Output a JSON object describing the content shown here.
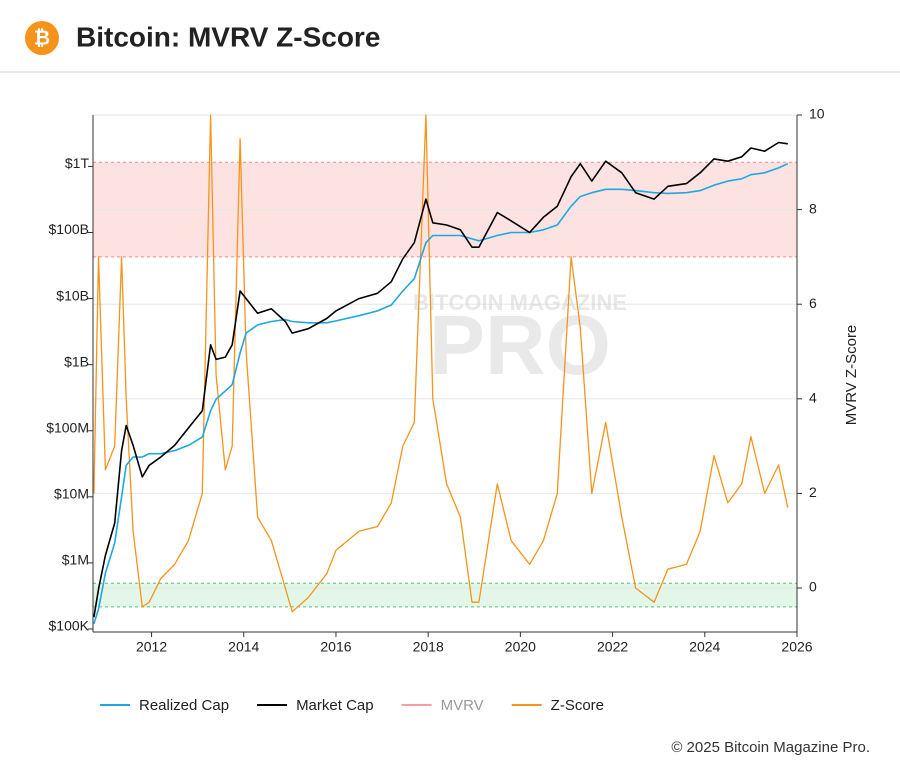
{
  "header": {
    "icon": "₿"
  },
  "chart_data": {
    "type": "line",
    "title": "Bitcoin: MVRV Z-Score",
    "y2_label": "MVRV Z-Score",
    "watermark": {
      "top": "BITCOIN MAGAZINE",
      "main": "PRO"
    },
    "x": [
      2010.75,
      2010.85,
      2011.0,
      2011.2,
      2011.35,
      2011.45,
      2011.6,
      2011.8,
      2011.95,
      2012.2,
      2012.5,
      2012.8,
      2013.1,
      2013.28,
      2013.4,
      2013.6,
      2013.75,
      2013.92,
      2014.05,
      2014.3,
      2014.6,
      2014.9,
      2015.05,
      2015.4,
      2015.8,
      2016.0,
      2016.5,
      2016.9,
      2017.2,
      2017.45,
      2017.7,
      2017.95,
      2018.1,
      2018.4,
      2018.7,
      2018.95,
      2019.1,
      2019.5,
      2019.8,
      2020.2,
      2020.5,
      2020.8,
      2021.1,
      2021.3,
      2021.55,
      2021.85,
      2022.2,
      2022.5,
      2022.9,
      2023.2,
      2023.6,
      2023.9,
      2024.2,
      2024.5,
      2024.8,
      2025.0,
      2025.3,
      2025.6,
      2025.8
    ],
    "series": [
      {
        "name": "Realized Cap",
        "color": "#1fa8e0",
        "values": [
          120000,
          200000,
          700000,
          2000000,
          10000000,
          30000000,
          40000000,
          40000000,
          45000000,
          45000000,
          50000000,
          60000000,
          80000000,
          200000000,
          300000000,
          400000000,
          500000000,
          1500000000,
          3000000000,
          4000000000,
          4500000000,
          4800000000,
          4500000000,
          4300000000,
          4300000000,
          4600000000,
          5500000000,
          6500000000,
          8000000000,
          13000000000,
          20000000000,
          70000000000,
          90000000000,
          90000000000,
          90000000000,
          80000000000,
          75000000000,
          90000000000,
          100000000000,
          100000000000,
          110000000000,
          130000000000,
          250000000000,
          350000000000,
          400000000000,
          450000000000,
          450000000000,
          430000000000,
          400000000000,
          390000000000,
          400000000000,
          430000000000,
          520000000000,
          600000000000,
          650000000000,
          750000000000,
          800000000000,
          950000000000,
          1100000000000
        ]
      },
      {
        "name": "Market Cap",
        "color": "#000000",
        "values": [
          150000,
          400000,
          1300000,
          4000000,
          50000000,
          120000000,
          60000000,
          20000000,
          30000000,
          40000000,
          60000000,
          110000000,
          200000000,
          2000000000,
          1200000000,
          1300000000,
          2000000000,
          13000000000,
          10000000000,
          6000000000,
          7000000000,
          4500000000,
          3000000000,
          3500000000,
          5000000000,
          6500000000,
          10000000000,
          12000000000,
          18000000000,
          40000000000,
          70000000000,
          320000000000,
          140000000000,
          130000000000,
          110000000000,
          60000000000,
          60000000000,
          200000000000,
          150000000000,
          100000000000,
          170000000000,
          250000000000,
          700000000000,
          1100000000000,
          600000000000,
          1200000000000,
          800000000000,
          400000000000,
          320000000000,
          500000000000,
          550000000000,
          800000000000,
          1300000000000,
          1200000000000,
          1400000000000,
          1900000000000,
          1700000000000,
          2300000000000,
          2200000000000
        ]
      },
      {
        "name": "MVRV",
        "color": "#f4a0a0",
        "hidden": true
      },
      {
        "name": "Z-Score",
        "color": "#f7931a",
        "axis": "y2",
        "values": [
          2.0,
          7.0,
          2.5,
          3.0,
          7.0,
          4.0,
          1.2,
          -0.4,
          -0.3,
          0.2,
          0.5,
          1.0,
          2.0,
          10,
          4.5,
          2.5,
          3.0,
          9.5,
          5.0,
          1.5,
          1.0,
          0.0,
          -0.5,
          -0.2,
          0.3,
          0.8,
          1.2,
          1.3,
          1.8,
          3.0,
          3.5,
          10,
          4.0,
          2.2,
          1.5,
          -0.3,
          -0.3,
          2.2,
          1.0,
          0.5,
          1.0,
          2.0,
          7.0,
          5.5,
          2.0,
          3.5,
          1.5,
          0.0,
          -0.3,
          0.4,
          0.5,
          1.2,
          2.8,
          1.8,
          2.2,
          3.2,
          2.0,
          2.6,
          1.7
        ]
      }
    ],
    "xlim": [
      2010.73,
      2026
    ],
    "xticks": [
      2012,
      2014,
      2016,
      2018,
      2020,
      2022,
      2024,
      2026
    ],
    "ylog": true,
    "ylim": [
      90000,
      6000000000000
    ],
    "yticks": [
      {
        "value": 100000,
        "label": "$100K"
      },
      {
        "value": 1000000,
        "label": "$1M"
      },
      {
        "value": 10000000,
        "label": "$10M"
      },
      {
        "value": 100000000,
        "label": "$100M"
      },
      {
        "value": 1000000000,
        "label": "$1B"
      },
      {
        "value": 10000000000,
        "label": "$10B"
      },
      {
        "value": 100000000000,
        "label": "$100B"
      },
      {
        "value": 1000000000000,
        "label": "$1T"
      }
    ],
    "y2lim": [
      -0.93,
      10
    ],
    "y2ticks": [
      0,
      2,
      4,
      6,
      8,
      10
    ],
    "grid": true,
    "bands": [
      {
        "from": 7,
        "to": 9,
        "color": "#fde2e2",
        "edge": "#f08a8a"
      },
      {
        "from": -0.4,
        "to": 0.1,
        "color": "#e3f7e8",
        "edge": "#55c070"
      }
    ],
    "legend": "bottom"
  },
  "footer": "© 2025 Bitcoin Magazine Pro."
}
